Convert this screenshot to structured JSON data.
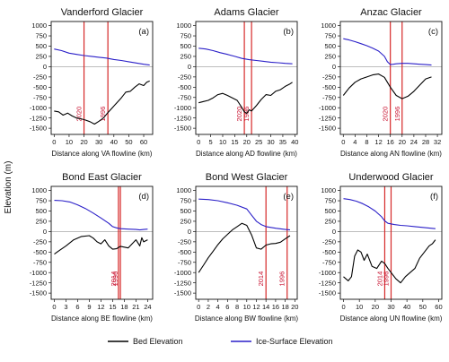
{
  "figure": {
    "ylabel": "Elevation (m)",
    "legend": {
      "bed": "Bed Elevation",
      "ice": "Ice-Surface Elevation"
    },
    "colors": {
      "bed": "#000000",
      "ice": "#2a1fc8",
      "marker": "#d62828",
      "zero": "#a8a8a8"
    }
  },
  "chart_data": [
    {
      "type": "line",
      "title": "Vanderford Glacier",
      "label": "(a)",
      "xlabel": "Distance along VA flowline (km)",
      "xlim": [
        -2,
        66
      ],
      "xticks": [
        0,
        10,
        20,
        30,
        40,
        50,
        60
      ],
      "ylim": [
        -1650,
        1100
      ],
      "yticks": [
        1000,
        750,
        500,
        250,
        0,
        -250,
        -500,
        -750,
        -1000,
        -1250,
        -1500
      ],
      "markers": [
        {
          "x": 20,
          "label": "2020"
        },
        {
          "x": 36,
          "label": "1996"
        }
      ],
      "series": [
        {
          "name": "Bed Elevation",
          "x": [
            0,
            3,
            6,
            9,
            12,
            15,
            18,
            21,
            24,
            27,
            30,
            33,
            36,
            39,
            42,
            45,
            48,
            51,
            54,
            57,
            60,
            62,
            64
          ],
          "y": [
            -1080,
            -1100,
            -1180,
            -1130,
            -1200,
            -1250,
            -1270,
            -1300,
            -1340,
            -1400,
            -1330,
            -1250,
            -1120,
            -1000,
            -880,
            -760,
            -620,
            -600,
            -500,
            -420,
            -460,
            -380,
            -350
          ]
        },
        {
          "name": "Ice-Surface Elevation",
          "x": [
            0,
            5,
            10,
            15,
            20,
            25,
            30,
            35,
            40,
            45,
            50,
            55,
            60,
            64
          ],
          "y": [
            430,
            390,
            330,
            300,
            270,
            250,
            230,
            210,
            175,
            150,
            120,
            90,
            60,
            40
          ]
        }
      ]
    },
    {
      "type": "line",
      "title": "Adams Glacier",
      "label": "(b)",
      "xlabel": "Distance along AD flowline (km)",
      "xlim": [
        -1.2,
        41
      ],
      "xticks": [
        0,
        5,
        10,
        15,
        20,
        25,
        30,
        35,
        40
      ],
      "ylim": [
        -1650,
        1100
      ],
      "yticks": [
        1000,
        750,
        500,
        250,
        0,
        -250,
        -500,
        -750,
        -1000,
        -1250,
        -1500
      ],
      "markers": [
        {
          "x": 19,
          "label": "2020"
        },
        {
          "x": 22,
          "label": "1996"
        }
      ],
      "series": [
        {
          "name": "Bed Elevation",
          "x": [
            0,
            2,
            4,
            6,
            8,
            10,
            12,
            14,
            16,
            18,
            19,
            20,
            21,
            22,
            24,
            26,
            28,
            30,
            32,
            34,
            36,
            38,
            39
          ],
          "y": [
            -880,
            -850,
            -820,
            -760,
            -680,
            -650,
            -700,
            -760,
            -820,
            -1000,
            -1100,
            -1140,
            -1050,
            -1080,
            -950,
            -800,
            -680,
            -700,
            -600,
            -560,
            -480,
            -420,
            -380
          ]
        },
        {
          "name": "Ice-Surface Elevation",
          "x": [
            0,
            3,
            6,
            9,
            12,
            15,
            18,
            21,
            24,
            27,
            30,
            33,
            36,
            39
          ],
          "y": [
            450,
            430,
            390,
            340,
            300,
            250,
            200,
            170,
            150,
            130,
            110,
            95,
            80,
            70
          ]
        }
      ]
    },
    {
      "type": "line",
      "title": "Anzac Glacier",
      "label": "(c)",
      "xlabel": "Distance along AN flowline (km)",
      "xlim": [
        -1,
        33.5
      ],
      "xticks": [
        0,
        4,
        8,
        12,
        16,
        20,
        24,
        28,
        32
      ],
      "ylim": [
        -1650,
        1100
      ],
      "yticks": [
        1000,
        750,
        500,
        250,
        0,
        -250,
        -500,
        -750,
        -1000,
        -1250,
        -1500
      ],
      "markers": [
        {
          "x": 16,
          "label": "2020"
        },
        {
          "x": 20,
          "label": "1996"
        }
      ],
      "series": [
        {
          "name": "Bed Elevation",
          "x": [
            0,
            2,
            4,
            6,
            8,
            10,
            12,
            14,
            16,
            18,
            20,
            22,
            24,
            26,
            28,
            30
          ],
          "y": [
            -700,
            -520,
            -380,
            -300,
            -250,
            -200,
            -180,
            -260,
            -500,
            -700,
            -780,
            -720,
            -600,
            -450,
            -300,
            -250
          ]
        },
        {
          "name": "Ice-Surface Elevation",
          "x": [
            0,
            2,
            4,
            6,
            8,
            10,
            12,
            14,
            15,
            16,
            17,
            18,
            20,
            22,
            24,
            26,
            28,
            30
          ],
          "y": [
            680,
            650,
            610,
            560,
            510,
            450,
            380,
            250,
            120,
            50,
            60,
            70,
            80,
            80,
            70,
            60,
            50,
            40
          ]
        }
      ]
    },
    {
      "type": "line",
      "title": "Bond East Glacier",
      "label": "(d)",
      "xlabel": "Distance along BE flowline (km)",
      "xlim": [
        -0.8,
        25.3
      ],
      "xticks": [
        0,
        3,
        6,
        9,
        12,
        15,
        18,
        21,
        24
      ],
      "ylim": [
        -1650,
        1100
      ],
      "yticks": [
        1000,
        750,
        500,
        250,
        0,
        -250,
        -500,
        -750,
        -1000,
        -1250,
        -1500
      ],
      "markers": [
        {
          "x": 16.5,
          "label": "2014"
        },
        {
          "x": 17,
          "label": "1996"
        }
      ],
      "series": [
        {
          "name": "Bed Elevation",
          "x": [
            0,
            1,
            3,
            5,
            7,
            9,
            10,
            11,
            12,
            13,
            14,
            15,
            16,
            17,
            18,
            19,
            20,
            21,
            22,
            22.5,
            23,
            24
          ],
          "y": [
            -550,
            -480,
            -350,
            -200,
            -120,
            -100,
            -160,
            -250,
            -300,
            -200,
            -350,
            -430,
            -420,
            -360,
            -380,
            -400,
            -300,
            -200,
            -350,
            -150,
            -250,
            -200
          ]
        },
        {
          "name": "Ice-Surface Elevation",
          "x": [
            0,
            2,
            4,
            6,
            8,
            10,
            12,
            14,
            15,
            16,
            17,
            19,
            21,
            22,
            23,
            24
          ],
          "y": [
            760,
            750,
            720,
            650,
            560,
            450,
            330,
            200,
            120,
            90,
            70,
            60,
            50,
            40,
            50,
            60
          ]
        }
      ]
    },
    {
      "type": "line",
      "title": "Bond West Glacier",
      "label": "(e)",
      "xlabel": "Distance along BW flowline (km)",
      "xlim": [
        -0.6,
        20.5
      ],
      "xticks": [
        0,
        2,
        4,
        6,
        8,
        10,
        12,
        14,
        16,
        18,
        20
      ],
      "ylim": [
        -1650,
        1100
      ],
      "yticks": [
        1000,
        750,
        500,
        250,
        0,
        -250,
        -500,
        -750,
        -1000,
        -1250,
        -1500
      ],
      "markers": [
        {
          "x": 14,
          "label": "2014"
        },
        {
          "x": 18.4,
          "label": "1996"
        }
      ],
      "series": [
        {
          "name": "Bed Elevation",
          "x": [
            0,
            1,
            2,
            3,
            4,
            5,
            6,
            7,
            8,
            9,
            10,
            11,
            12,
            13,
            14,
            15,
            16,
            17,
            18,
            19
          ],
          "y": [
            -1000,
            -820,
            -640,
            -480,
            -320,
            -180,
            -70,
            40,
            120,
            200,
            150,
            -80,
            -400,
            -430,
            -330,
            -300,
            -290,
            -260,
            -180,
            -100
          ]
        },
        {
          "name": "Ice-Surface Elevation",
          "x": [
            0,
            2,
            4,
            6,
            8,
            10,
            11,
            12,
            13,
            14,
            15,
            16,
            18,
            19
          ],
          "y": [
            790,
            780,
            750,
            700,
            640,
            550,
            400,
            250,
            170,
            120,
            100,
            80,
            50,
            40
          ]
        }
      ]
    },
    {
      "type": "line",
      "title": "Underwood Glacier",
      "label": "(f)",
      "xlabel": "Distance along UN flowline (km)",
      "xlim": [
        -2,
        62
      ],
      "xticks": [
        0,
        10,
        20,
        30,
        40,
        50,
        60
      ],
      "ylim": [
        -1650,
        1100
      ],
      "yticks": [
        1000,
        750,
        500,
        250,
        0,
        -250,
        -500,
        -750,
        -1000,
        -1250,
        -1500
      ],
      "markers": [
        {
          "x": 26,
          "label": "2014"
        },
        {
          "x": 30,
          "label": "1996"
        }
      ],
      "series": [
        {
          "name": "Bed Elevation",
          "x": [
            0,
            3,
            5,
            7,
            9,
            11,
            13,
            15,
            18,
            21,
            24,
            26,
            28,
            30,
            33,
            36,
            39,
            42,
            45,
            48,
            51,
            54,
            56,
            58
          ],
          "y": [
            -1100,
            -1200,
            -1100,
            -600,
            -450,
            -500,
            -700,
            -550,
            -850,
            -900,
            -720,
            -780,
            -900,
            -1000,
            -1150,
            -1250,
            -1100,
            -1000,
            -900,
            -650,
            -500,
            -350,
            -300,
            -200
          ]
        },
        {
          "name": "Ice-Surface Elevation",
          "x": [
            0,
            4,
            8,
            12,
            16,
            20,
            24,
            26,
            28,
            32,
            36,
            40,
            45,
            50,
            55,
            58
          ],
          "y": [
            800,
            780,
            740,
            680,
            600,
            500,
            360,
            260,
            200,
            170,
            150,
            140,
            120,
            100,
            80,
            70
          ]
        }
      ]
    }
  ]
}
